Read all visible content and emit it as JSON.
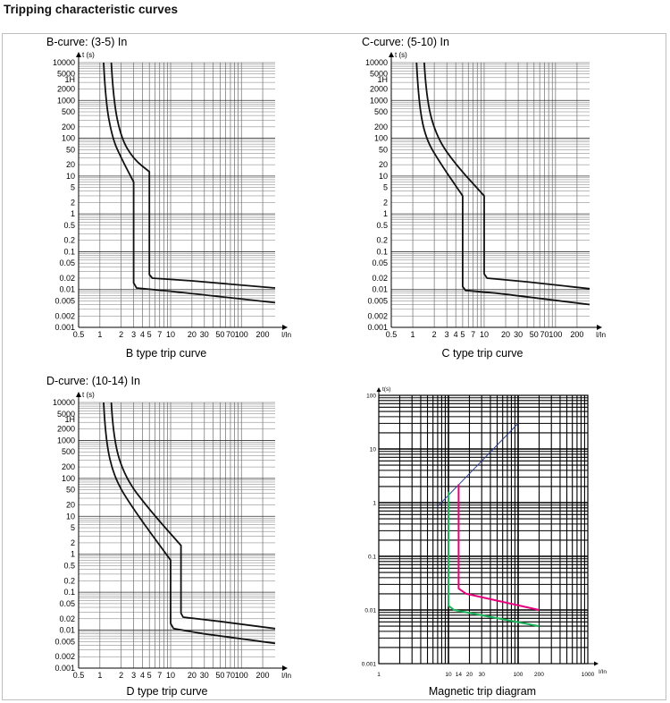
{
  "page": {
    "title": "Tripping characteristic curves"
  },
  "chart_data": [
    {
      "type": "line",
      "title": "B-curve: (3-5) In",
      "caption": "B type trip curve",
      "ylabel": "t (s)",
      "xlabel": "I/In",
      "xscale": "log",
      "yscale": "log",
      "xlim": [
        0.5,
        300
      ],
      "ylim": [
        0.001,
        10000
      ],
      "x_ticks": [
        "0.5",
        "1",
        "2",
        "3",
        "4",
        "5",
        "7",
        "10",
        "20",
        "30",
        "50",
        "70",
        "100",
        "200"
      ],
      "x_tick_values": [
        0.5,
        1,
        2,
        3,
        4,
        5,
        7,
        10,
        20,
        30,
        50,
        70,
        100,
        200
      ],
      "y_ticks": [
        "10000",
        "5000",
        "1H",
        "2000",
        "1000",
        "500",
        "200",
        "100",
        "50",
        "20",
        "10",
        "5",
        "2",
        "1",
        "0.5",
        "0.2",
        "0.1",
        "0.05",
        "0.02",
        "0.01",
        "0.005",
        "0.002",
        "0.001"
      ],
      "y_tick_values": [
        10000,
        5000,
        3600,
        2000,
        1000,
        500,
        200,
        100,
        50,
        20,
        10,
        5,
        2,
        1,
        0.5,
        0.2,
        0.1,
        0.05,
        0.02,
        0.01,
        0.005,
        0.002,
        0.001
      ],
      "series": [
        {
          "name": "lower bound",
          "points": [
            [
              1.13,
              10000
            ],
            [
              1.2,
              1000
            ],
            [
              1.5,
              100
            ],
            [
              2,
              30
            ],
            [
              3,
              7
            ],
            [
              3,
              0.015
            ],
            [
              3.3,
              0.011
            ],
            [
              10,
              0.009
            ],
            [
              300,
              0.0045
            ]
          ]
        },
        {
          "name": "upper bound",
          "points": [
            [
              1.45,
              10000
            ],
            [
              1.55,
              1000
            ],
            [
              2,
              100
            ],
            [
              3,
              28
            ],
            [
              5,
              13
            ],
            [
              5,
              0.025
            ],
            [
              5.5,
              0.02
            ],
            [
              20,
              0.017
            ],
            [
              300,
              0.011
            ]
          ]
        }
      ]
    },
    {
      "type": "line",
      "title": "C-curve: (5-10) In",
      "caption": "C type trip curve",
      "ylabel": "t (s)",
      "xlabel": "I/In",
      "xscale": "log",
      "yscale": "log",
      "xlim": [
        0.5,
        300
      ],
      "ylim": [
        0.001,
        10000
      ],
      "x_ticks": [
        "0.5",
        "1",
        "2",
        "3",
        "4",
        "5",
        "7",
        "10",
        "20",
        "30",
        "50",
        "70",
        "100",
        "200"
      ],
      "x_tick_values": [
        0.5,
        1,
        2,
        3,
        4,
        5,
        7,
        10,
        20,
        30,
        50,
        70,
        100,
        200
      ],
      "y_ticks": [
        "10000",
        "5000",
        "1H",
        "2000",
        "1000",
        "500",
        "200",
        "100",
        "50",
        "20",
        "10",
        "5",
        "2",
        "1",
        "0.5",
        "0.2",
        "0.1",
        "0.05",
        "0.02",
        "0.01",
        "0.005",
        "0.002",
        "0.001"
      ],
      "y_tick_values": [
        10000,
        5000,
        3600,
        2000,
        1000,
        500,
        200,
        100,
        50,
        20,
        10,
        5,
        2,
        1,
        0.5,
        0.2,
        0.1,
        0.05,
        0.02,
        0.01,
        0.005,
        0.002,
        0.001
      ],
      "series": [
        {
          "name": "lower bound",
          "points": [
            [
              1.13,
              10000
            ],
            [
              1.2,
              1000
            ],
            [
              1.5,
              100
            ],
            [
              2.5,
              20
            ],
            [
              5,
              3
            ],
            [
              5,
              0.012
            ],
            [
              5.5,
              0.0095
            ],
            [
              15,
              0.008
            ],
            [
              300,
              0.004
            ]
          ]
        },
        {
          "name": "upper bound",
          "points": [
            [
              1.45,
              10000
            ],
            [
              1.55,
              1000
            ],
            [
              2.2,
              100
            ],
            [
              4,
              20
            ],
            [
              10,
              3
            ],
            [
              10,
              0.026
            ],
            [
              11,
              0.02
            ],
            [
              40,
              0.016
            ],
            [
              300,
              0.0105
            ]
          ]
        }
      ]
    },
    {
      "type": "line",
      "title": "D-curve: (10-14) In",
      "caption": "D type trip curve",
      "ylabel": "t (s)",
      "xlabel": "I/In",
      "xscale": "log",
      "yscale": "log",
      "xlim": [
        0.5,
        300
      ],
      "ylim": [
        0.001,
        10000
      ],
      "x_ticks": [
        "0.5",
        "1",
        "2",
        "3",
        "4",
        "5",
        "7",
        "10",
        "20",
        "30",
        "50",
        "70",
        "100",
        "200"
      ],
      "x_tick_values": [
        0.5,
        1,
        2,
        3,
        4,
        5,
        7,
        10,
        20,
        30,
        50,
        70,
        100,
        200
      ],
      "y_ticks": [
        "10000",
        "5000",
        "1H",
        "2000",
        "1000",
        "500",
        "200",
        "100",
        "50",
        "20",
        "10",
        "5",
        "2",
        "1",
        "0.5",
        "0.2",
        "0.1",
        "0.05",
        "0.02",
        "0.01",
        "0.005",
        "0.002",
        "0.001"
      ],
      "y_tick_values": [
        10000,
        5000,
        3600,
        2000,
        1000,
        500,
        200,
        100,
        50,
        20,
        10,
        5,
        2,
        1,
        0.5,
        0.2,
        0.1,
        0.05,
        0.02,
        0.01,
        0.005,
        0.002,
        0.001
      ],
      "series": [
        {
          "name": "lower bound",
          "points": [
            [
              1.13,
              10000
            ],
            [
              1.2,
              1000
            ],
            [
              1.6,
              100
            ],
            [
              3,
              15
            ],
            [
              10,
              0.7
            ],
            [
              10,
              0.015
            ],
            [
              11,
              0.011
            ],
            [
              30,
              0.008
            ],
            [
              300,
              0.0045
            ]
          ]
        },
        {
          "name": "upper bound",
          "points": [
            [
              1.45,
              10000
            ],
            [
              1.55,
              1000
            ],
            [
              2.3,
              100
            ],
            [
              5,
              15
            ],
            [
              14,
              1.7
            ],
            [
              14,
              0.028
            ],
            [
              15,
              0.022
            ],
            [
              50,
              0.017
            ],
            [
              300,
              0.011
            ]
          ]
        }
      ]
    },
    {
      "type": "line",
      "title": "",
      "caption": "Magnetic trip diagram",
      "ylabel": "t(s)",
      "xlabel": "I/In",
      "xscale": "log",
      "yscale": "log",
      "xlim": [
        1,
        1000
      ],
      "ylim": [
        0.001,
        100
      ],
      "x_ticks": [
        "1",
        "10",
        "14",
        "20",
        "30",
        "100",
        "200",
        "1000"
      ],
      "x_tick_values": [
        1,
        10,
        14,
        20,
        30,
        100,
        200,
        1000
      ],
      "y_ticks": [
        "100",
        "10",
        "1",
        "0.1",
        "0.01",
        "0.001"
      ],
      "y_tick_values": [
        100,
        10,
        1,
        0.1,
        0.01,
        0.001
      ],
      "series": [
        {
          "name": "thermal line",
          "color": "#2c3e8c",
          "points": [
            [
              7,
              0.85
            ],
            [
              100,
              30
            ]
          ]
        },
        {
          "name": "magenta curve",
          "color": "#e6007e",
          "points": [
            [
              14,
              2.2
            ],
            [
              14,
              0.025
            ],
            [
              18,
              0.02
            ],
            [
              200,
              0.01
            ]
          ]
        },
        {
          "name": "green curve",
          "color": "#19b35a",
          "points": [
            [
              10,
              1.6
            ],
            [
              10,
              0.012
            ],
            [
              12,
              0.01
            ],
            [
              200,
              0.005
            ]
          ]
        }
      ]
    }
  ]
}
